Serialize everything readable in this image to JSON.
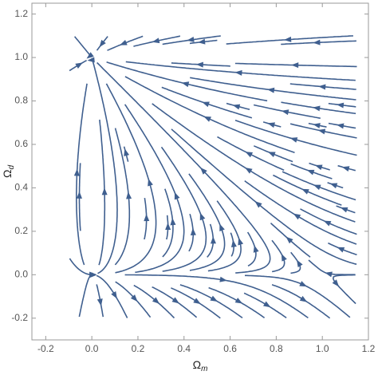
{
  "chart_data": {
    "type": "streamplot",
    "xlabel": {
      "main": "Ω",
      "sub": "m"
    },
    "ylabel": {
      "main": "Ω",
      "sub": "d"
    },
    "xlim": [
      -0.26,
      1.2
    ],
    "ylim": [
      -0.3,
      1.25
    ],
    "xticks": [
      {
        "value": -0.2,
        "label": "-0.2"
      },
      {
        "value": 0,
        "label": "0.0"
      },
      {
        "value": 0.2,
        "label": "0.2"
      },
      {
        "value": 0.4,
        "label": "0.4"
      },
      {
        "value": 0.6,
        "label": "0.6"
      },
      {
        "value": 0.8,
        "label": "0.8"
      },
      {
        "value": 1,
        "label": "1.0"
      },
      {
        "value": 1.2,
        "label": "1.2"
      }
    ],
    "yticks": [
      {
        "value": -0.2,
        "label": "-0.2"
      },
      {
        "value": 0,
        "label": "0.0"
      },
      {
        "value": 0.2,
        "label": "0.2"
      },
      {
        "value": 0.4,
        "label": "0.4"
      },
      {
        "value": 0.6,
        "label": "0.6"
      },
      {
        "value": 0.8,
        "label": "0.8"
      },
      {
        "value": 1,
        "label": "1.0"
      },
      {
        "value": 1.2,
        "label": "1.2"
      }
    ],
    "color": "#3f5f8f"
  }
}
